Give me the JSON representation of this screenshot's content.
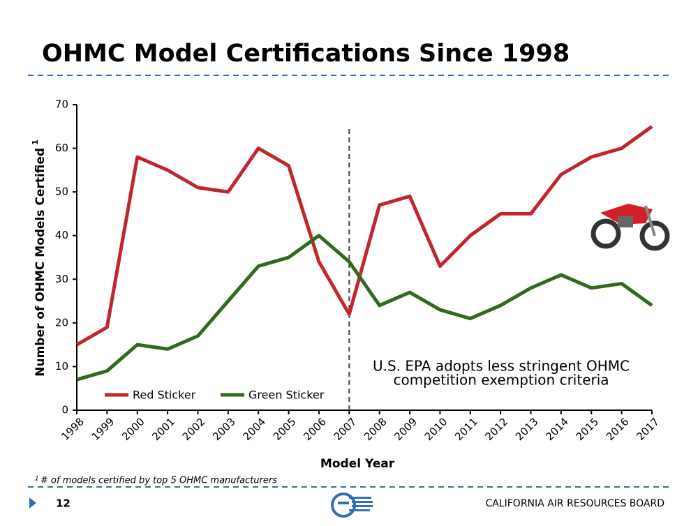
{
  "header": {
    "title": "OHMC Model Certifications Since 1998"
  },
  "chart_data": {
    "type": "line",
    "y_label": "Number of OHMC Models Certified",
    "y_label_note": "1",
    "x_label": "Model Year",
    "categories": [
      "1998",
      "1999",
      "2000",
      "2001",
      "2002",
      "2003",
      "2004",
      "2005",
      "2006",
      "2007",
      "2008",
      "2009",
      "2010",
      "2011",
      "2012",
      "2013",
      "2014",
      "2015",
      "2016",
      "2017"
    ],
    "series": [
      {
        "name": "Red Sticker",
        "color": "#c0272d",
        "values": [
          15,
          19,
          58,
          55,
          51,
          50,
          60,
          56,
          34,
          22,
          47,
          49,
          33,
          40,
          45,
          45,
          54,
          58,
          60,
          65
        ]
      },
      {
        "name": "Green Sticker",
        "color": "#2f6a1f",
        "values": [
          7,
          9,
          15,
          14,
          17,
          25,
          33,
          35,
          40,
          34,
          24,
          27,
          23,
          21,
          24,
          28,
          31,
          28,
          29,
          24
        ]
      }
    ],
    "ylim": [
      0,
      70
    ],
    "yticks": [
      0,
      10,
      20,
      30,
      40,
      50,
      60,
      70
    ],
    "marker_category": "2007",
    "annotation": [
      "U.S. EPA adopts less stringent OHMC",
      "competition exemption criteria"
    ],
    "legend": "bottom-left"
  },
  "footnote": {
    "marker": "1",
    "text": "# of models certified by top 5 OHMC manufacturers"
  },
  "footer": {
    "page": "12",
    "org": "CALIFORNIA AIR RESOURCES BOARD"
  }
}
